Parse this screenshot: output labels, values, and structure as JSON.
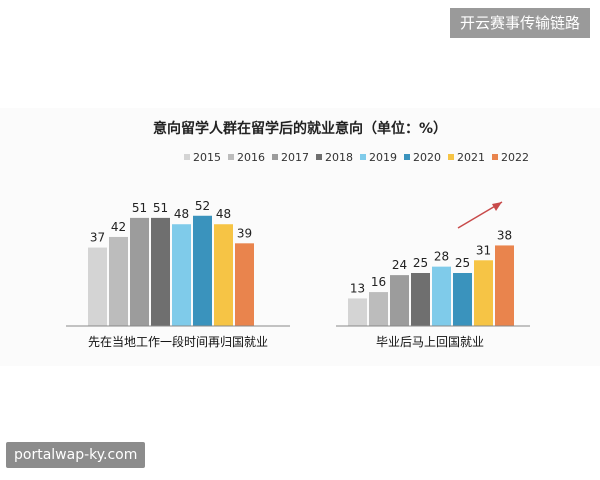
{
  "brand_label": "开云赛事传输链路",
  "watermark_label": "portalwap-ky.com",
  "chart_data": {
    "type": "bar",
    "title": "意向留学人群在留学后的就业意向（单位：%）",
    "categories": [
      "先在当地工作一段时间再归国就业",
      "毕业后马上回国就业"
    ],
    "series": [
      {
        "name": "2015",
        "color": "#d4d4d4",
        "values": [
          37,
          13
        ]
      },
      {
        "name": "2016",
        "color": "#bcbcbc",
        "values": [
          42,
          16
        ]
      },
      {
        "name": "2017",
        "color": "#9c9c9c",
        "values": [
          51,
          24
        ]
      },
      {
        "name": "2018",
        "color": "#6f6f6f",
        "values": [
          51,
          25
        ]
      },
      {
        "name": "2019",
        "color": "#7fcbea",
        "values": [
          48,
          28
        ]
      },
      {
        "name": "2020",
        "color": "#3a93bd",
        "values": [
          52,
          25
        ]
      },
      {
        "name": "2021",
        "color": "#f6c445",
        "values": [
          48,
          31
        ]
      },
      {
        "name": "2022",
        "color": "#e9844d",
        "values": [
          39,
          38
        ]
      }
    ],
    "ylim": [
      0,
      60
    ],
    "legend_position": "top-right",
    "grid": false
  }
}
